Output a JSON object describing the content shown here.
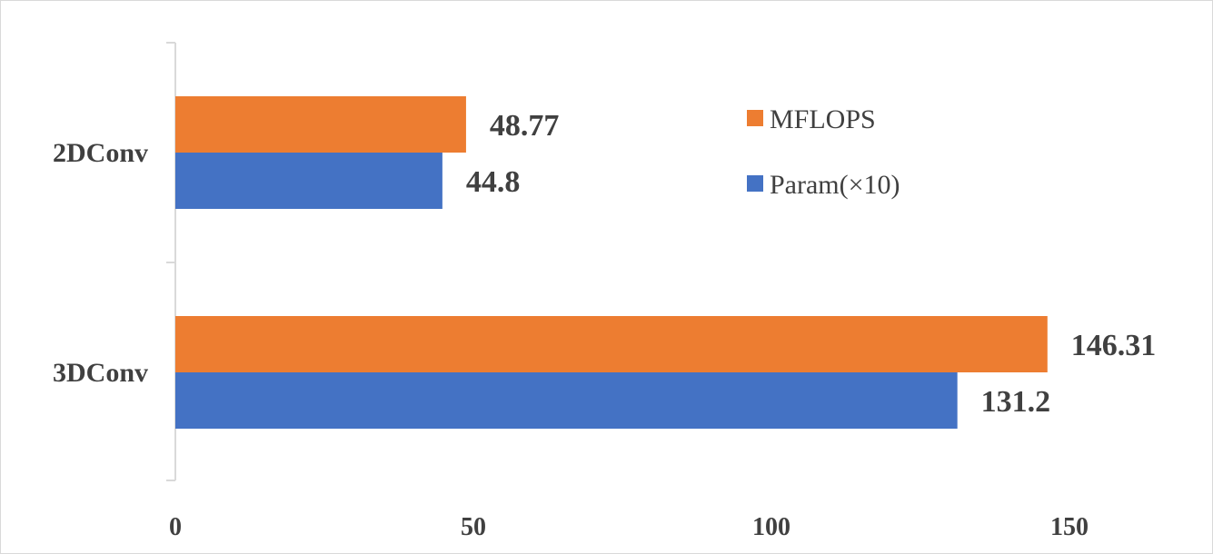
{
  "chart_data": {
    "type": "bar",
    "orientation": "horizontal",
    "categories": [
      "2DConv",
      "3DConv"
    ],
    "series": [
      {
        "name": "MFLOPS",
        "values": [
          48.77,
          146.31
        ],
        "color": "#ED7D31"
      },
      {
        "name": "Param(×10)",
        "values": [
          44.8,
          131.2
        ],
        "color": "#4472C4"
      }
    ],
    "data_labels": [
      [
        "48.77",
        "146.31"
      ],
      [
        "44.8",
        "131.2"
      ]
    ],
    "x_ticks": [
      "0",
      "50",
      "100",
      "150"
    ],
    "xlim": [
      0,
      150
    ],
    "grid": false,
    "legend_position": "top-right",
    "axis_color": "#D9D9D9",
    "label_color": "#404040"
  }
}
